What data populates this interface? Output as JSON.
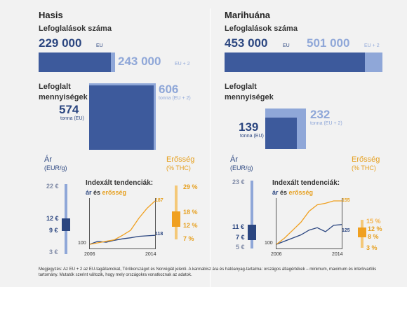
{
  "hasis": {
    "title": "Hasis",
    "seizures_label": "Lefoglalások száma",
    "seizures_eu": "229 000",
    "seizures_eu_suffix": "EU",
    "seizures_eu2": "243 000",
    "seizures_eu2_suffix": "EU + 2",
    "quantity_label": "Lefoglalt mennyiségek",
    "quantity_eu": "574",
    "quantity_eu_unit": "tonna (EU)",
    "quantity_eu2": "606",
    "quantity_eu2_unit": "tonna (EU + 2)",
    "price_label": "Ár",
    "price_unit": "(EUR/g)",
    "strength_label": "Erősség",
    "strength_unit": "(% THC)",
    "price_max": "22 €",
    "price_high": "12 €",
    "price_low": "9 €",
    "price_min": "3 €",
    "strength_max": "29 %",
    "strength_high": "18 %",
    "strength_low": "12 %",
    "strength_min": "7 %",
    "trend_title": "Indexált tendenciák:",
    "trend_price_word": "ár",
    "trend_and": " és ",
    "trend_strength_word": "erősség",
    "trend_start_label": "100",
    "trend_end_strength": "187",
    "trend_end_price": "118",
    "year_start": "2006",
    "year_end": "2014"
  },
  "marihuana": {
    "title": "Marihuána",
    "seizures_label": "Lefoglalások száma",
    "seizures_eu": "453 000",
    "seizures_eu_suffix": "EU",
    "seizures_eu2": "501 000",
    "seizures_eu2_suffix": "EU + 2",
    "quantity_label": "Lefoglalt mennyiségek",
    "quantity_eu": "139",
    "quantity_eu_unit": "tonna (EU)",
    "quantity_eu2": "232",
    "quantity_eu2_unit": "tonna (EU + 2)",
    "price_label": "Ár",
    "price_unit": "(EUR/g)",
    "strength_label": "Erősség",
    "strength_unit": "(% THC)",
    "price_max": "23 €",
    "price_high": "11 €",
    "price_low": "7 €",
    "price_min": "5 €",
    "strength_max": "15 %",
    "strength_high": "12 %",
    "strength_low": "8 %",
    "strength_min": "3 %",
    "trend_title": "Indexált tendenciák:",
    "trend_price_word": "ár",
    "trend_and": " és ",
    "trend_strength_word": "erősség",
    "trend_start_label": "100",
    "trend_end_strength": "155",
    "trend_end_price": "125",
    "year_start": "2006",
    "year_end": "2014"
  },
  "footnote": "Megjegyzés: Az EU + 2 az EU-tagállamokat, Törökországot és Norvégiát jelenti. A kannabisz ára és hatóanyag-tartalma: országos átlagértékek – minimum, maximum és interkvartilis tartomány. Mutatók szerint változik, hogy mely országokra vonatkoznak az adatok.",
  "colors": {
    "eu": "#3d5a9c",
    "eu2": "#8fa7d8",
    "strength": "#f0a020",
    "price_line": "#2b4680"
  },
  "chart_data": [
    {
      "type": "bar",
      "title": "Hasis",
      "seizures": {
        "EU": 229000,
        "EU + 2": 243000
      },
      "seized_quantity_tonnes": {
        "EU": 574,
        "EU + 2": 606
      },
      "price_eur_per_g": {
        "min": 3,
        "q1": 9,
        "q3": 12,
        "max": 22
      },
      "potency_pct_thc": {
        "min": 7,
        "q1": 12,
        "q3": 18,
        "max": 29
      }
    },
    {
      "type": "line",
      "title": "Indexált tendenciák: ár és erősség",
      "x": [
        2006,
        2007,
        2008,
        2009,
        2010,
        2011,
        2012,
        2013,
        2014
      ],
      "series": [
        {
          "name": "ár",
          "values": [
            100,
            106,
            104,
            108,
            111,
            113,
            116,
            117,
            118
          ]
        },
        {
          "name": "erősség",
          "values": [
            100,
            103,
            106,
            109,
            118,
            128,
            152,
            172,
            187
          ]
        }
      ]
    },
    {
      "type": "bar",
      "title": "Marihuána",
      "seizures": {
        "EU": 453000,
        "EU + 2": 501000
      },
      "seized_quantity_tonnes": {
        "EU": 139,
        "EU + 2": 232
      },
      "price_eur_per_g": {
        "min": 5,
        "q1": 7,
        "q3": 11,
        "max": 23
      },
      "potency_pct_thc": {
        "min": 3,
        "q1": 8,
        "q3": 12,
        "max": 15
      }
    },
    {
      "type": "line",
      "title": "Indexált tendenciák: ár és erősség",
      "x": [
        2006,
        2007,
        2008,
        2009,
        2010,
        2011,
        2012,
        2013,
        2014
      ],
      "series": [
        {
          "name": "ár",
          "values": [
            100,
            104,
            108,
            112,
            118,
            121,
            116,
            124,
            125
          ]
        },
        {
          "name": "erősség",
          "values": [
            100,
            108,
            118,
            128,
            142,
            150,
            152,
            155,
            155
          ]
        }
      ]
    }
  ]
}
